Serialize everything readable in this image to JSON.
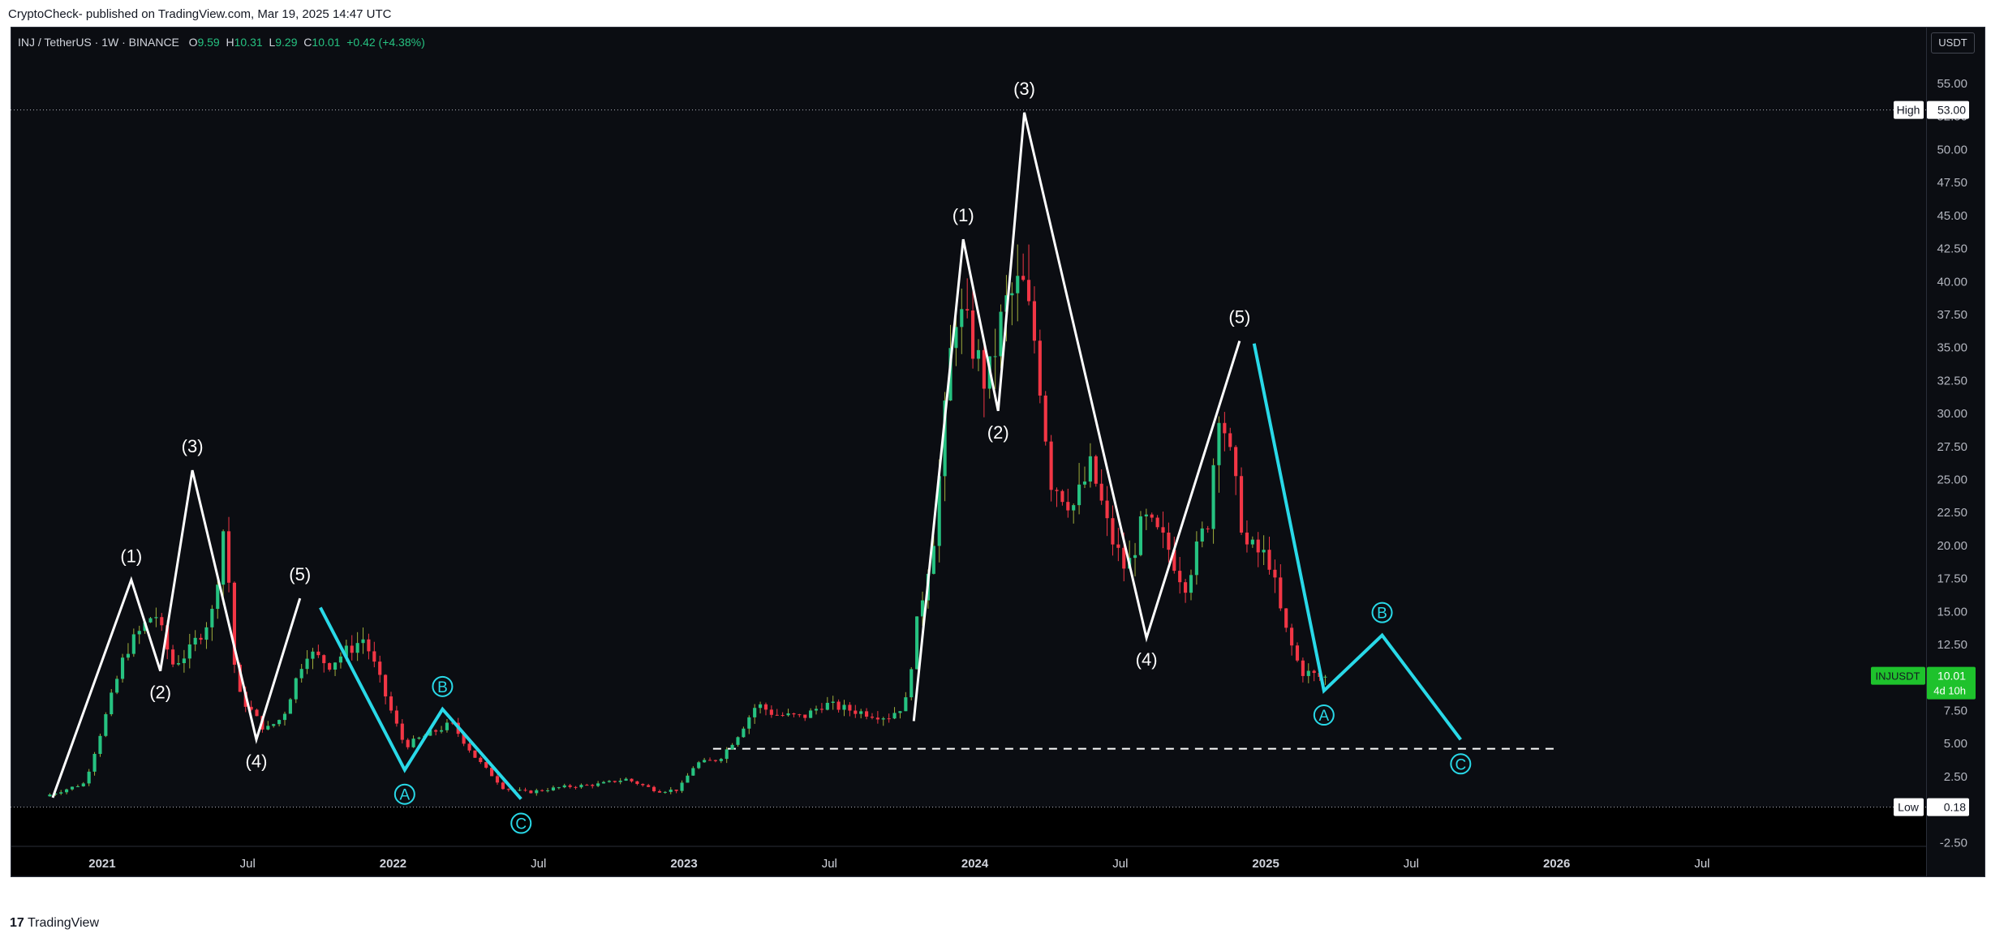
{
  "header": {
    "publisher_line": "CryptoCheck- published on TradingView.com, Mar 19, 2025 14:47 UTC"
  },
  "legend": {
    "symbol": "INJ / TetherUS · 1W · BINANCE",
    "open_label": "O",
    "open": "9.59",
    "high_label": "H",
    "high": "10.31",
    "low_label": "L",
    "low": "9.29",
    "close_label": "C",
    "close": "10.01",
    "change": "+0.42 (+4.38%)"
  },
  "currency_button": "USDT",
  "footer": {
    "logo_glyph": "17",
    "brand": "TradingView"
  },
  "colors": {
    "background": "#0b0d12",
    "up_candle": "#26c281",
    "down_candle": "#f23645",
    "wave_white": "#ffffff",
    "wave_cyan": "#29d9e8",
    "price_tag": "#1ec22c"
  },
  "chart_data": {
    "type": "candlestick",
    "title": "",
    "xlabel": "",
    "ylabel": "",
    "ylim": [
      -5.0,
      59.3
    ],
    "y_ticks": [
      "55.00",
      "52.50",
      "50.00",
      "47.50",
      "45.00",
      "42.50",
      "40.00",
      "37.50",
      "35.00",
      "32.50",
      "30.00",
      "27.50",
      "25.00",
      "22.50",
      "20.00",
      "17.50",
      "15.00",
      "12.50",
      "10.00",
      "7.50",
      "5.00",
      "2.50",
      "-2.50"
    ],
    "x_ticks": [
      "2021",
      "Jul",
      "2022",
      "Jul",
      "2023",
      "Jul",
      "2024",
      "Jul",
      "2025",
      "Jul",
      "2026",
      "Jul"
    ],
    "x_tick_years": [
      2021.0,
      2021.5,
      2022.0,
      2022.5,
      2023.0,
      2023.5,
      2024.0,
      2024.5,
      2025.0,
      2025.5,
      2026.0,
      2026.5
    ],
    "xlim": [
      2020.685,
      2027.27
    ],
    "high_line": {
      "label": "High",
      "value": "53.00"
    },
    "low_line": {
      "label": "Low",
      "value": "0.18"
    },
    "current_price": {
      "symbol": "INJUSDT",
      "value": "10.01",
      "countdown": "4d 10h"
    },
    "support_line": {
      "from": 2023.1,
      "to": 2026.0,
      "value": 4.6,
      "style": "dashed"
    },
    "price_anchors": [
      {
        "t": 2020.82,
        "p": 1.0
      },
      {
        "t": 2020.96,
        "p": 2.0
      },
      {
        "t": 2021.1,
        "p": 12.0
      },
      {
        "t": 2021.2,
        "p": 15.0
      },
      {
        "t": 2021.26,
        "p": 11.0
      },
      {
        "t": 2021.32,
        "p": 12.0
      },
      {
        "t": 2021.4,
        "p": 15.0
      },
      {
        "t": 2021.44,
        "p": 22.0
      },
      {
        "t": 2021.48,
        "p": 9.0
      },
      {
        "t": 2021.58,
        "p": 6.0
      },
      {
        "t": 2021.64,
        "p": 7.0
      },
      {
        "t": 2021.72,
        "p": 12.0
      },
      {
        "t": 2021.8,
        "p": 11.0
      },
      {
        "t": 2021.86,
        "p": 12.0
      },
      {
        "t": 2021.92,
        "p": 13.0
      },
      {
        "t": 2022.02,
        "p": 7.0
      },
      {
        "t": 2022.06,
        "p": 4.8
      },
      {
        "t": 2022.12,
        "p": 5.5
      },
      {
        "t": 2022.22,
        "p": 6.5
      },
      {
        "t": 2022.3,
        "p": 4.0
      },
      {
        "t": 2022.4,
        "p": 1.6
      },
      {
        "t": 2022.48,
        "p": 1.3
      },
      {
        "t": 2022.6,
        "p": 1.7
      },
      {
        "t": 2022.72,
        "p": 1.9
      },
      {
        "t": 2022.82,
        "p": 2.3
      },
      {
        "t": 2022.93,
        "p": 1.4
      },
      {
        "t": 2023.0,
        "p": 1.5
      },
      {
        "t": 2023.06,
        "p": 3.5
      },
      {
        "t": 2023.14,
        "p": 3.8
      },
      {
        "t": 2023.2,
        "p": 5.5
      },
      {
        "t": 2023.27,
        "p": 8.0
      },
      {
        "t": 2023.33,
        "p": 7.2
      },
      {
        "t": 2023.43,
        "p": 7.0
      },
      {
        "t": 2023.5,
        "p": 8.0
      },
      {
        "t": 2023.6,
        "p": 7.5
      },
      {
        "t": 2023.72,
        "p": 7.0
      },
      {
        "t": 2023.78,
        "p": 8.0
      },
      {
        "t": 2023.82,
        "p": 14.0
      },
      {
        "t": 2023.88,
        "p": 21.0
      },
      {
        "t": 2023.95,
        "p": 38.0
      },
      {
        "t": 2024.0,
        "p": 36.0
      },
      {
        "t": 2024.06,
        "p": 32.0
      },
      {
        "t": 2024.12,
        "p": 38.0
      },
      {
        "t": 2024.18,
        "p": 40.0
      },
      {
        "t": 2024.23,
        "p": 35.0
      },
      {
        "t": 2024.28,
        "p": 25.0
      },
      {
        "t": 2024.36,
        "p": 23.0
      },
      {
        "t": 2024.42,
        "p": 26.0
      },
      {
        "t": 2024.48,
        "p": 21.0
      },
      {
        "t": 2024.54,
        "p": 18.0
      },
      {
        "t": 2024.6,
        "p": 22.0
      },
      {
        "t": 2024.68,
        "p": 20.0
      },
      {
        "t": 2024.74,
        "p": 17.0
      },
      {
        "t": 2024.82,
        "p": 22.0
      },
      {
        "t": 2024.86,
        "p": 31.0
      },
      {
        "t": 2024.91,
        "p": 25.0
      },
      {
        "t": 2024.95,
        "p": 20.0
      },
      {
        "t": 2025.03,
        "p": 19.0
      },
      {
        "t": 2025.08,
        "p": 14.0
      },
      {
        "t": 2025.14,
        "p": 10.5
      },
      {
        "t": 2025.21,
        "p": 10.0
      }
    ],
    "wave_1_2021": {
      "color": "white",
      "points": [
        {
          "t": 2020.83,
          "p": 0.9
        },
        {
          "t": 2021.1,
          "p": 17.4
        },
        {
          "t": 2021.2,
          "p": 10.5
        },
        {
          "t": 2021.31,
          "p": 25.7
        },
        {
          "t": 2021.53,
          "p": 5.3
        },
        {
          "t": 2021.68,
          "p": 16.0
        }
      ],
      "labels": [
        {
          "text": "(1)",
          "t": 2021.1,
          "p": 17.4,
          "pos": "above"
        },
        {
          "text": "(2)",
          "t": 2021.2,
          "p": 10.5,
          "pos": "below"
        },
        {
          "text": "(3)",
          "t": 2021.31,
          "p": 25.7,
          "pos": "above"
        },
        {
          "text": "(4)",
          "t": 2021.53,
          "p": 5.3,
          "pos": "below"
        },
        {
          "text": "(5)",
          "t": 2021.68,
          "p": 16.0,
          "pos": "above"
        }
      ]
    },
    "wave_abc_2022": {
      "color": "cyan",
      "points": [
        {
          "t": 2021.75,
          "p": 15.3
        },
        {
          "t": 2022.04,
          "p": 3.0
        },
        {
          "t": 2022.17,
          "p": 7.6
        },
        {
          "t": 2022.44,
          "p": 0.8
        }
      ],
      "labels": [
        {
          "text": "A",
          "t": 2022.04,
          "p": 3.0,
          "pos": "below"
        },
        {
          "text": "B",
          "t": 2022.17,
          "p": 7.6,
          "pos": "above"
        },
        {
          "text": "C",
          "t": 2022.44,
          "p": 0.8,
          "pos": "below"
        }
      ]
    },
    "wave_1_2024": {
      "color": "white",
      "points": [
        {
          "t": 2023.79,
          "p": 6.7
        },
        {
          "t": 2023.96,
          "p": 43.2
        },
        {
          "t": 2024.08,
          "p": 30.2
        },
        {
          "t": 2024.17,
          "p": 52.8
        },
        {
          "t": 2024.59,
          "p": 13.0
        },
        {
          "t": 2024.91,
          "p": 35.5
        }
      ],
      "labels": [
        {
          "text": "(1)",
          "t": 2023.96,
          "p": 43.2,
          "pos": "above"
        },
        {
          "text": "(2)",
          "t": 2024.08,
          "p": 30.2,
          "pos": "below"
        },
        {
          "text": "(3)",
          "t": 2024.17,
          "p": 52.8,
          "pos": "above"
        },
        {
          "text": "(4)",
          "t": 2024.59,
          "p": 13.0,
          "pos": "below"
        },
        {
          "text": "(5)",
          "t": 2024.91,
          "p": 35.5,
          "pos": "above"
        }
      ]
    },
    "wave_abc_2025": {
      "color": "cyan",
      "points": [
        {
          "t": 2024.96,
          "p": 35.3
        },
        {
          "t": 2025.2,
          "p": 9.0
        },
        {
          "t": 2025.4,
          "p": 13.2
        },
        {
          "t": 2025.67,
          "p": 5.3
        }
      ],
      "labels": [
        {
          "text": "A",
          "t": 2025.2,
          "p": 9.0,
          "pos": "below"
        },
        {
          "text": "B",
          "t": 2025.4,
          "p": 13.2,
          "pos": "above"
        },
        {
          "text": "C",
          "t": 2025.67,
          "p": 5.3,
          "pos": "below"
        }
      ]
    }
  }
}
